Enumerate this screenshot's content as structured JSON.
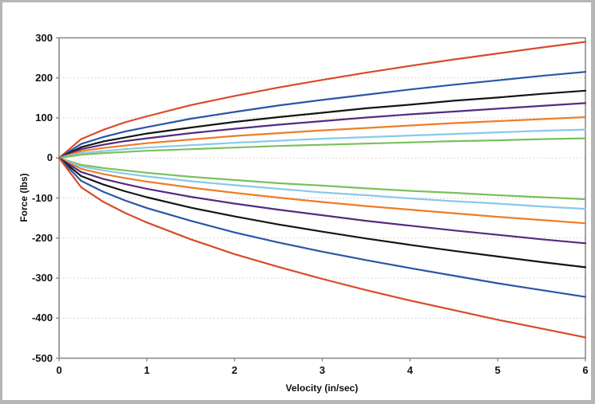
{
  "window": {
    "background_color": "#ffffff",
    "border_color": "#b4b7b4"
  },
  "chart_data": {
    "type": "line",
    "title": "",
    "xlabel": "Velocity (in/sec)",
    "ylabel": "Force (lbs)",
    "xlim": [
      0,
      6
    ],
    "ylim": [
      -500,
      300
    ],
    "x_ticks": [
      "0",
      "1",
      "2",
      "3",
      "4",
      "5",
      "6"
    ],
    "y_ticks": [
      "300",
      "200",
      "100",
      "0",
      "-100",
      "-200",
      "-300",
      "-400",
      "-500"
    ],
    "grid": "horizontal-dotted",
    "legend": "none",
    "axis_color": "#8c8c8c",
    "gridline_color": "#d8c2c2",
    "text_color": "#111111",
    "x": [
      0,
      0.25,
      0.5,
      0.75,
      1,
      1.5,
      2,
      2.5,
      3,
      3.5,
      4,
      4.5,
      5,
      5.5,
      6
    ],
    "series": [
      {
        "name": "red-positive",
        "color": "#d84b2a",
        "values": [
          0,
          47,
          70,
          89,
          104,
          132,
          155,
          176,
          195,
          213,
          230,
          246,
          261,
          276,
          290
        ]
      },
      {
        "name": "blue-positive",
        "color": "#2a56a4",
        "values": [
          0,
          35,
          52,
          66,
          77,
          98,
          115,
          131,
          145,
          158,
          171,
          183,
          194,
          205,
          215
        ]
      },
      {
        "name": "black-positive",
        "color": "#151515",
        "values": [
          0,
          27,
          41,
          51,
          61,
          76,
          90,
          102,
          113,
          124,
          133,
          143,
          151,
          160,
          168
        ]
      },
      {
        "name": "purple-positive",
        "color": "#552b82",
        "values": [
          0,
          22,
          33,
          42,
          49,
          62,
          73,
          83,
          92,
          101,
          109,
          116,
          123,
          130,
          137
        ]
      },
      {
        "name": "orange-positive",
        "color": "#ee7d26",
        "values": [
          0,
          17,
          25,
          31,
          37,
          46,
          55,
          62,
          69,
          75,
          81,
          87,
          92,
          97,
          102
        ]
      },
      {
        "name": "lightblue-positive",
        "color": "#88cae8",
        "values": [
          0,
          12,
          17,
          22,
          26,
          32,
          38,
          43,
          48,
          52,
          56,
          60,
          64,
          68,
          71
        ]
      },
      {
        "name": "green-positive",
        "color": "#7ac05c",
        "values": [
          0,
          8,
          12,
          15,
          18,
          22,
          26,
          30,
          33,
          36,
          39,
          42,
          44,
          47,
          49
        ]
      },
      {
        "name": "green-negative",
        "color": "#7ac05c",
        "values": [
          0,
          -17,
          -25,
          -31,
          -37,
          -47,
          -55,
          -63,
          -69,
          -76,
          -82,
          -87,
          -93,
          -98,
          -103
        ]
      },
      {
        "name": "lightblue-negative",
        "color": "#88cae8",
        "values": [
          0,
          -21,
          -31,
          -39,
          -46,
          -58,
          -68,
          -77,
          -86,
          -93,
          -101,
          -108,
          -114,
          -121,
          -127
        ]
      },
      {
        "name": "orange-negative",
        "color": "#ee7d26",
        "values": [
          0,
          -27,
          -40,
          -50,
          -59,
          -74,
          -87,
          -99,
          -110,
          -120,
          -129,
          -138,
          -147,
          -155,
          -163
        ]
      },
      {
        "name": "purple-negative",
        "color": "#552b82",
        "values": [
          0,
          -35,
          -52,
          -65,
          -77,
          -97,
          -114,
          -129,
          -143,
          -157,
          -169,
          -181,
          -192,
          -203,
          -213
        ]
      },
      {
        "name": "black-negative",
        "color": "#151515",
        "values": [
          0,
          -45,
          -66,
          -83,
          -98,
          -124,
          -146,
          -166,
          -184,
          -201,
          -217,
          -232,
          -246,
          -260,
          -273
        ]
      },
      {
        "name": "blue-negative",
        "color": "#2a56a4",
        "values": [
          0,
          -57,
          -84,
          -106,
          -125,
          -157,
          -186,
          -211,
          -234,
          -255,
          -275,
          -294,
          -313,
          -330,
          -347
        ]
      },
      {
        "name": "red-negative",
        "color": "#d84b2a",
        "values": [
          0,
          -73,
          -109,
          -137,
          -161,
          -203,
          -240,
          -272,
          -302,
          -330,
          -356,
          -380,
          -404,
          -426,
          -448
        ]
      }
    ]
  }
}
